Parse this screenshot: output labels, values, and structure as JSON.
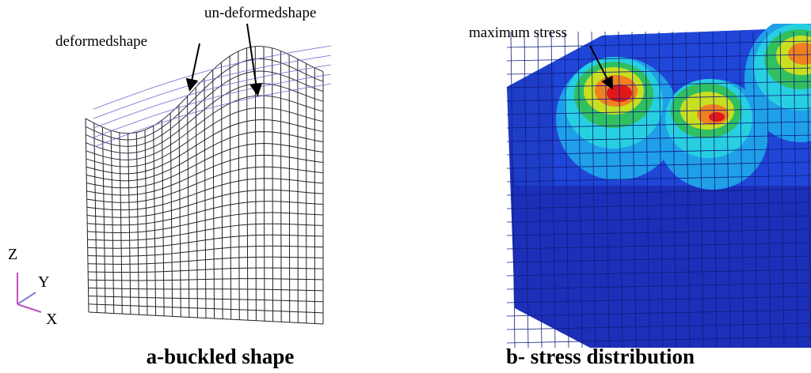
{
  "panels": [
    {
      "caption": "a-buckled shape",
      "annotations": [
        "deformedshape",
        "un-deformedshape"
      ],
      "axes": [
        "Z",
        "Y",
        "X"
      ]
    },
    {
      "caption": "b- stress distribution",
      "annotations": [
        "maximum stress"
      ]
    }
  ]
}
